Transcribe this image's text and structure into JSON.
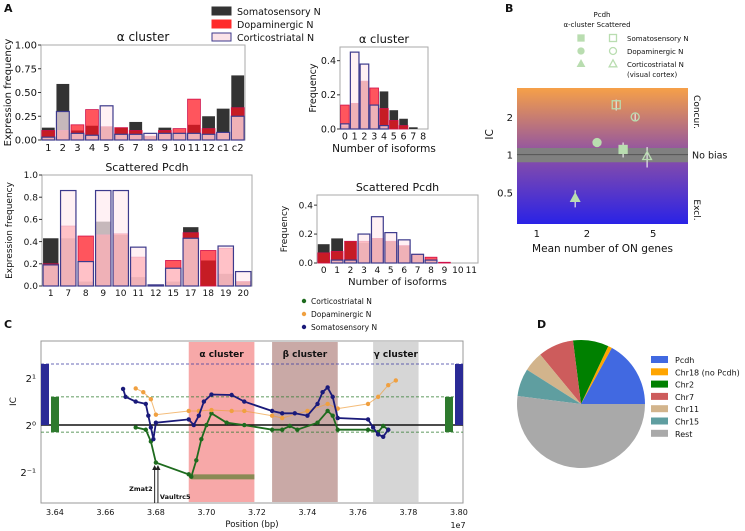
{
  "panel_labels": [
    "A",
    "B",
    "C",
    "D"
  ],
  "colors": {
    "somatosensory": "#333333",
    "dopaminergic": "#ff2a2a",
    "corticostriatal_fill": "#fbe3e8",
    "corticostriatal_edge": "#3d3a8c",
    "c_cortico": "#1e6b1e",
    "c_dopa": "#f0a040",
    "c_somato": "#1a1a7a"
  },
  "legend_a": [
    "Somatosensory N",
    "Dopaminergic N",
    "Corticostriatal N"
  ],
  "chart_data": [
    {
      "type": "bar",
      "title": "α cluster",
      "ylabel": "Expression frequency",
      "xlabel": "",
      "ylim": [
        0,
        1.0
      ],
      "yticks": [
        0,
        0.25,
        0.5,
        0.75,
        1.0
      ],
      "ytick_labels": [
        "0.00",
        "0.25",
        "0.50",
        "0.75",
        "1.00"
      ],
      "categories": [
        "1",
        "2",
        "3",
        "4",
        "5",
        "6",
        "7",
        "8",
        "9",
        "10",
        "11",
        "12",
        "c1",
        "c2"
      ],
      "series": [
        {
          "name": "Somatosensory N",
          "values": [
            0.13,
            0.59,
            0.1,
            0.15,
            0.14,
            0.13,
            0.19,
            0.04,
            0.13,
            0.07,
            0.16,
            0.25,
            0.33,
            0.68
          ]
        },
        {
          "name": "Dopaminergic N",
          "values": [
            0.1,
            0.1,
            0.16,
            0.32,
            0.14,
            0.13,
            0.1,
            0.04,
            0.1,
            0.12,
            0.43,
            0.12,
            0.07,
            0.34
          ]
        },
        {
          "name": "Corticostriatal N",
          "values": [
            0.03,
            0.3,
            0.07,
            0.05,
            0.36,
            0.06,
            0.06,
            0.07,
            0.07,
            0.07,
            0.07,
            0.06,
            0.08,
            0.25
          ]
        }
      ]
    },
    {
      "type": "bar",
      "title": "Scattered Pcdh",
      "ylabel": "Expression frequency",
      "xlabel": "",
      "ylim": [
        0,
        1.0
      ],
      "yticks": [
        0,
        0.2,
        0.4,
        0.6,
        0.8,
        1.0
      ],
      "ytick_labels": [
        "0.0",
        "0.2",
        "0.4",
        "0.6",
        "0.8",
        "1.0"
      ],
      "categories": [
        "1",
        "7",
        "8",
        "9",
        "10",
        "11",
        "12",
        "15",
        "17",
        "18",
        "19",
        "20"
      ],
      "series": [
        {
          "name": "Somatosensory N",
          "values": [
            0.43,
            0.43,
            0.04,
            0.58,
            0.46,
            0.08,
            0.01,
            0.04,
            0.53,
            0.23,
            0.11,
            0.04
          ]
        },
        {
          "name": "Dopaminergic N",
          "values": [
            0.2,
            0.54,
            0.45,
            0.46,
            0.47,
            0.26,
            0.01,
            0.23,
            0.48,
            0.32,
            0.34,
            0.04
          ]
        },
        {
          "name": "Corticostriatal N",
          "values": [
            0.19,
            0.86,
            0.22,
            0.86,
            0.86,
            0.35,
            0.01,
            0.16,
            0.43,
            0.0,
            0.36,
            0.13
          ]
        }
      ]
    },
    {
      "type": "bar",
      "title": "α cluster",
      "ylabel": "Frequency",
      "xlabel": "Number of isoforms",
      "ylim": [
        0,
        0.48
      ],
      "yticks": [
        0,
        0.2,
        0.4
      ],
      "ytick_labels": [
        "0.0",
        "0.2",
        "0.4"
      ],
      "categories": [
        "0",
        "1",
        "2",
        "3",
        "4",
        "5",
        "6",
        "7",
        "8"
      ],
      "series": [
        {
          "name": "Somatosensory N",
          "values": [
            0.02,
            0.15,
            0.28,
            0.14,
            0.22,
            0.11,
            0.06,
            0.01,
            0.0
          ]
        },
        {
          "name": "Dopaminergic N",
          "values": [
            0.14,
            0.15,
            0.28,
            0.24,
            0.12,
            0.05,
            0.02,
            0.0,
            0.0
          ]
        },
        {
          "name": "Corticostriatal N",
          "values": [
            0.03,
            0.45,
            0.38,
            0.14,
            0.02,
            0.0,
            0.0,
            0.0,
            0.0
          ]
        }
      ]
    },
    {
      "type": "bar",
      "title": "Scattered Pcdh",
      "ylabel": "Frequency",
      "xlabel": "Number of isoforms",
      "ylim": [
        0,
        0.47
      ],
      "yticks": [
        0,
        0.2,
        0.4
      ],
      "ytick_labels": [
        "0.0",
        "0.2",
        "0.4"
      ],
      "categories": [
        "0",
        "1",
        "2",
        "3",
        "4",
        "5",
        "6",
        "7",
        "8",
        "9",
        "10",
        "11"
      ],
      "series": [
        {
          "name": "Somatosensory N",
          "values": [
            0.13,
            0.17,
            0.15,
            0.14,
            0.17,
            0.15,
            0.12,
            0.06,
            0.02,
            0.005,
            0.0,
            0.0
          ]
        },
        {
          "name": "Dopaminergic N",
          "values": [
            0.07,
            0.08,
            0.15,
            0.15,
            0.17,
            0.15,
            0.12,
            0.06,
            0.04,
            0.005,
            0.0,
            0.0
          ]
        },
        {
          "name": "Corticostriatal N",
          "values": [
            0.0,
            0.02,
            0.02,
            0.2,
            0.32,
            0.21,
            0.16,
            0.06,
            0.02,
            0.0,
            0.0,
            0.0
          ]
        }
      ]
    },
    {
      "type": "scatter",
      "xlabel": "Mean number of ON genes",
      "ylabel": "IC",
      "x_scale": "log",
      "y_scale": "log",
      "xlim": [
        0.76,
        8.1
      ],
      "ylim": [
        0.28,
        3.4
      ],
      "xticks": [
        1,
        2,
        5
      ],
      "xtick_labels": [
        "1",
        "2",
        "5"
      ],
      "yticks": [
        0.5,
        1,
        2
      ],
      "ytick_labels": [
        "0.5",
        "1",
        "2"
      ],
      "legend_title": [
        "Pcdh",
        "α-cluster Scattered"
      ],
      "legend_entries": [
        "Somatosensory N",
        "Dopaminergic N",
        "Corticostriatal N",
        "(visual cortex)"
      ],
      "right_labels": [
        "Concur.",
        "No bias",
        "Excl."
      ],
      "no_bias_band": [
        0.87,
        1.13
      ],
      "background_gradient": [
        "#f6a048",
        "#8a4fa8",
        "#2a22e6"
      ],
      "marker_color": "#b9ddb0",
      "points": [
        {
          "group": "α-cluster",
          "cell": "Somatosensory N",
          "marker": "square-filled",
          "x": 3.3,
          "y": 1.1,
          "err": 0.15
        },
        {
          "group": "α-cluster",
          "cell": "Dopaminergic N",
          "marker": "circle-filled",
          "x": 2.3,
          "y": 1.25,
          "err": 0.1
        },
        {
          "group": "α-cluster",
          "cell": "Corticostriatal N",
          "marker": "triangle-filled",
          "x": 1.7,
          "y": 0.45,
          "err": 0.07
        },
        {
          "group": "Scattered",
          "cell": "Somatosensory N",
          "marker": "square-open",
          "x": 3.0,
          "y": 2.5,
          "err": 0.25
        },
        {
          "group": "Scattered",
          "cell": "Dopaminergic N",
          "marker": "circle-open",
          "x": 3.9,
          "y": 2.0,
          "err": 0.12
        },
        {
          "group": "Scattered",
          "cell": "Corticostriatal N",
          "marker": "triangle-open",
          "x": 4.6,
          "y": 0.97,
          "err": 0.18
        }
      ]
    },
    {
      "type": "line",
      "xlabel": "Position (bp)",
      "ylabel": "IC",
      "x_offset_label": "1e7",
      "y_scale": "log2",
      "xlim": [
        3.6345,
        3.8016
      ],
      "ylim_log2": [
        -1.66,
        1.79
      ],
      "xticks": [
        3.64,
        3.66,
        3.68,
        3.7,
        3.72,
        3.74,
        3.76,
        3.78,
        3.8
      ],
      "xtick_labels": [
        "3.64",
        "3.66",
        "3.68",
        "3.70",
        "3.72",
        "3.74",
        "3.76",
        "3.78",
        "3.80"
      ],
      "yticks_log2": [
        -1,
        0,
        1
      ],
      "ytick_labels": [
        "2⁻¹",
        "2⁰",
        "2¹"
      ],
      "regions": [
        {
          "label": "α cluster",
          "from": 3.693,
          "to": 3.719,
          "color": "#f7a8a8"
        },
        {
          "label": "β cluster",
          "from": 3.726,
          "to": 3.752,
          "color": "#c9a9a6"
        },
        {
          "label": "γ cluster",
          "from": 3.766,
          "to": 3.784,
          "color": "#d6d6d6"
        }
      ],
      "annotations": [
        "Zmat2",
        "Vaultrc5"
      ],
      "legend": [
        "Corticostriatal N",
        "Dopaminergic N",
        "Somatosensory N"
      ],
      "series": [
        {
          "name": "Corticostriatal N",
          "color": "#1e6b1e",
          "band_log2": [
            -0.15,
            0.6
          ],
          "points": [
            [
              3.672,
              -0.05
            ],
            [
              3.676,
              -0.1
            ],
            [
              3.678,
              -0.35
            ],
            [
              3.68,
              -0.8
            ],
            [
              3.693,
              -1.05
            ],
            [
              3.694,
              -1.1
            ],
            [
              3.696,
              -0.75
            ],
            [
              3.698,
              -0.3
            ],
            [
              3.7,
              0.0
            ],
            [
              3.702,
              0.25
            ],
            [
              3.708,
              0.05
            ],
            [
              3.715,
              0.0
            ],
            [
              3.726,
              -0.1
            ],
            [
              3.73,
              -0.1
            ],
            [
              3.733,
              -0.02
            ],
            [
              3.736,
              -0.1
            ],
            [
              3.744,
              0.05
            ],
            [
              3.748,
              0.3
            ],
            [
              3.75,
              0.2
            ],
            [
              3.752,
              -0.1
            ],
            [
              3.764,
              -0.1
            ],
            [
              3.768,
              -0.15
            ],
            [
              3.77,
              -0.02
            ],
            [
              3.772,
              -0.1
            ]
          ]
        },
        {
          "name": "Dopaminergic N",
          "color": "#f0a040",
          "points": [
            [
              3.672,
              0.78
            ],
            [
              3.675,
              0.7
            ],
            [
              3.678,
              0.55
            ],
            [
              3.68,
              0.22
            ],
            [
              3.693,
              0.3
            ],
            [
              3.697,
              0.3
            ],
            [
              3.702,
              0.32
            ],
            [
              3.71,
              0.3
            ],
            [
              3.715,
              0.3
            ],
            [
              3.726,
              0.2
            ],
            [
              3.73,
              0.15
            ],
            [
              3.74,
              0.3
            ],
            [
              3.748,
              0.45
            ],
            [
              3.752,
              0.35
            ],
            [
              3.764,
              0.45
            ],
            [
              3.768,
              0.6
            ],
            [
              3.772,
              0.85
            ],
            [
              3.775,
              0.95
            ]
          ]
        },
        {
          "name": "Somatosensory N",
          "color": "#1a1a7a",
          "band_log2": [
            0,
            1.3
          ],
          "points": [
            [
              3.667,
              0.77
            ],
            [
              3.668,
              0.6
            ],
            [
              3.672,
              0.5
            ],
            [
              3.676,
              0.45
            ],
            [
              3.677,
              0.2
            ],
            [
              3.678,
              -0.05
            ],
            [
              3.679,
              -0.3
            ],
            [
              3.68,
              0.05
            ],
            [
              3.693,
              0.12
            ],
            [
              3.695,
              0.0
            ],
            [
              3.697,
              0.2
            ],
            [
              3.699,
              0.5
            ],
            [
              3.702,
              0.65
            ],
            [
              3.71,
              0.64
            ],
            [
              3.715,
              0.5
            ],
            [
              3.726,
              0.3
            ],
            [
              3.73,
              0.25
            ],
            [
              3.735,
              0.25
            ],
            [
              3.74,
              0.2
            ],
            [
              3.744,
              0.45
            ],
            [
              3.746,
              0.7
            ],
            [
              3.748,
              0.8
            ],
            [
              3.75,
              0.6
            ],
            [
              3.752,
              0.15
            ],
            [
              3.764,
              0.12
            ],
            [
              3.766,
              -0.05
            ],
            [
              3.768,
              -0.2
            ],
            [
              3.77,
              -0.25
            ],
            [
              3.772,
              -0.1
            ]
          ]
        }
      ]
    },
    {
      "type": "pie",
      "labels": [
        "Pcdh",
        "Chr18 (no Pcdh)",
        "Chr2",
        "Chr7",
        "Chr11",
        "Chr15",
        "Rest"
      ],
      "values": [
        17,
        1,
        9,
        9,
        5,
        7,
        52
      ],
      "colors": [
        "#4169e1",
        "#ffa500",
        "#008000",
        "#cd5c5c",
        "#d2b48c",
        "#5f9ea0",
        "#a9a9a9"
      ]
    }
  ]
}
